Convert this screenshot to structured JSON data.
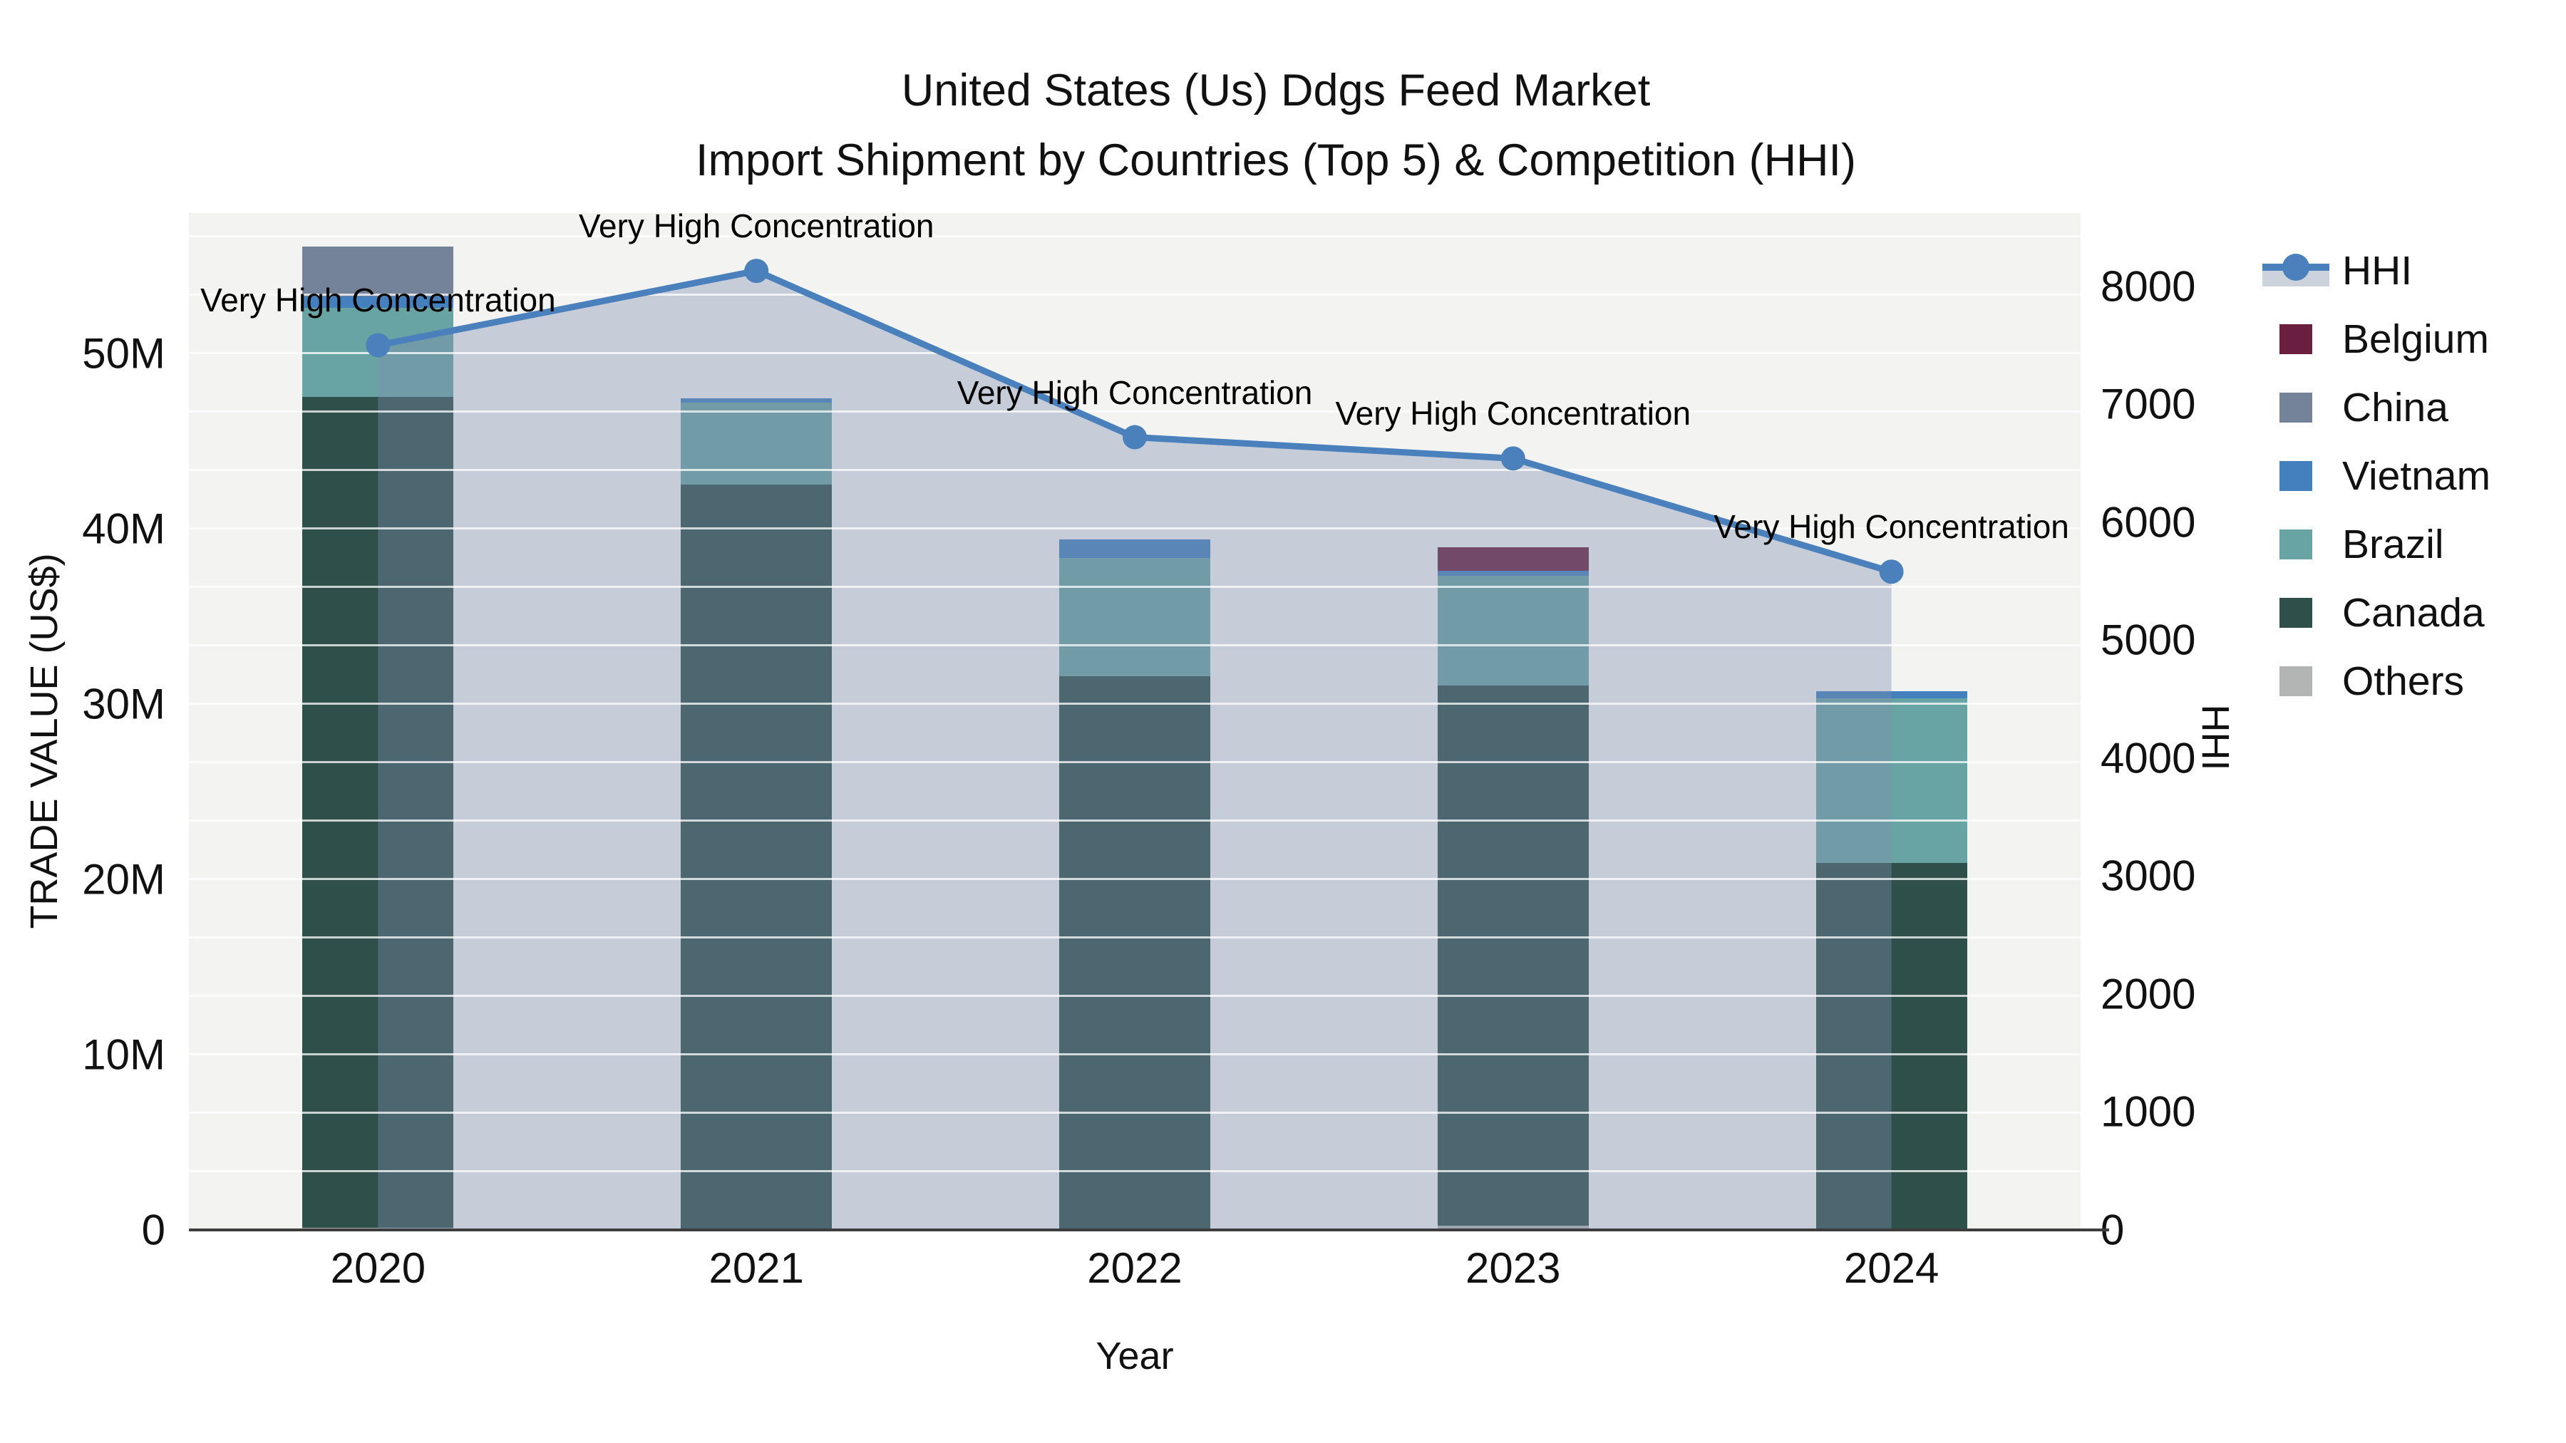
{
  "title": {
    "line1": "United States (Us) Ddgs Feed Market",
    "line2": "Import Shipment by Countries (Top 5) & Competition (HHI)"
  },
  "axes": {
    "left": {
      "label": "TRADE VALUE (US$)",
      "ticks": [
        {
          "value": 0,
          "label": "0"
        },
        {
          "value": 10000000,
          "label": "10M"
        },
        {
          "value": 20000000,
          "label": "20M"
        },
        {
          "value": 30000000,
          "label": "30M"
        },
        {
          "value": 40000000,
          "label": "40M"
        },
        {
          "value": 50000000,
          "label": "50M"
        }
      ]
    },
    "right": {
      "label": "HHI",
      "ticks": [
        {
          "value": 0,
          "label": "0"
        },
        {
          "value": 1000,
          "label": "1000"
        },
        {
          "value": 2000,
          "label": "2000"
        },
        {
          "value": 3000,
          "label": "3000"
        },
        {
          "value": 4000,
          "label": "4000"
        },
        {
          "value": 5000,
          "label": "5000"
        },
        {
          "value": 6000,
          "label": "6000"
        },
        {
          "value": 7000,
          "label": "7000"
        },
        {
          "value": 8000,
          "label": "8000"
        }
      ]
    },
    "x": {
      "label": "Year"
    }
  },
  "legend": [
    {
      "label": "HHI",
      "type": "line",
      "color": "#4a81bd",
      "band_color": "#ccd3dc"
    },
    {
      "label": "Belgium",
      "type": "box",
      "color": "#6b1f40"
    },
    {
      "label": "China",
      "type": "box",
      "color": "#75839a"
    },
    {
      "label": "Vietnam",
      "type": "box",
      "color": "#4380bd"
    },
    {
      "label": "Brazil",
      "type": "box",
      "color": "#68a4a3"
    },
    {
      "label": "Canada",
      "type": "box",
      "color": "#2f4f4b"
    },
    {
      "label": "Others",
      "type": "box",
      "color": "#b2b5b4"
    }
  ],
  "chart_data": {
    "type": "bar+line",
    "title": "United States (Us) Ddgs Feed Market — Import Shipment by Countries (Top 5) & Competition (HHI)",
    "categories": [
      "2020",
      "2021",
      "2022",
      "2023",
      "2024"
    ],
    "xlabel": "Year",
    "ylabel_left": "TRADE VALUE (US$)",
    "ylabel_right": "HHI",
    "ylim_left": [
      0,
      58000000
    ],
    "ylim_right": [
      0,
      8620
    ],
    "grid": "horizontal-minor-thirds",
    "legend_position": "right",
    "bar_stack_order_bottom_to_top": [
      "Others",
      "Canada",
      "Brazil",
      "Vietnam",
      "China",
      "Belgium"
    ],
    "series": [
      {
        "name": "Others",
        "type": "bar",
        "color": "#b2b5b4",
        "values": [
          120000,
          50000,
          80000,
          240000,
          30000
        ]
      },
      {
        "name": "Canada",
        "type": "bar",
        "color": "#2f4f4b",
        "values": [
          47400000,
          42450000,
          31500000,
          30810000,
          20900000
        ]
      },
      {
        "name": "Brazil",
        "type": "bar",
        "color": "#68a4a3",
        "values": [
          5080000,
          4700000,
          6750000,
          6260000,
          9400000
        ]
      },
      {
        "name": "Vietnam",
        "type": "bar",
        "color": "#4380bd",
        "values": [
          650000,
          240000,
          1060000,
          280000,
          400000
        ]
      },
      {
        "name": "China",
        "type": "bar",
        "color": "#75839a",
        "values": [
          2850000,
          0,
          0,
          0,
          0
        ]
      },
      {
        "name": "Belgium",
        "type": "bar",
        "color": "#6b1f40",
        "values": [
          0,
          0,
          0,
          1340000,
          0
        ]
      }
    ],
    "line_series": {
      "name": "HHI",
      "axis": "right",
      "color": "#4a81bd",
      "fill_color": "rgba(125,142,173,0.38)",
      "values": [
        7500,
        8130,
        6720,
        6540,
        5580
      ]
    },
    "annotations": [
      {
        "x": "2020",
        "text": "Very High Concentration"
      },
      {
        "x": "2021",
        "text": "Very High Concentration"
      },
      {
        "x": "2022",
        "text": "Very High Concentration"
      },
      {
        "x": "2023",
        "text": "Very High Concentration"
      },
      {
        "x": "2024",
        "text": "Very High Concentration"
      }
    ]
  }
}
